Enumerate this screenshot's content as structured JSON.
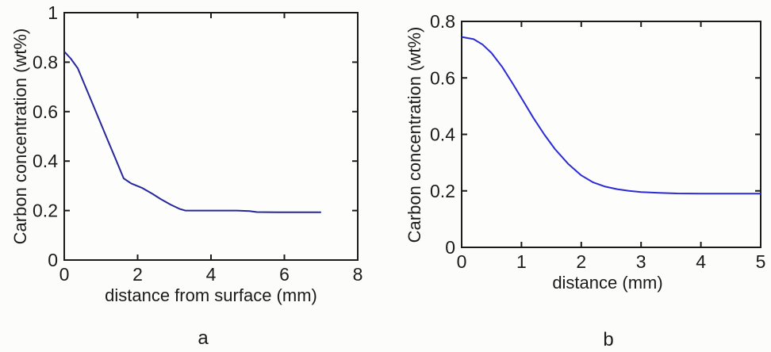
{
  "figure": {
    "description": "Two line plots of carbon concentration versus distance",
    "background": "#fcfcfa"
  },
  "chart_data": [
    {
      "type": "line",
      "panel_label": "a",
      "title": "",
      "xlabel": "distance from surface (mm)",
      "ylabel": "Carbon concentration (wt%)",
      "xlim": [
        0,
        8
      ],
      "ylim": [
        0,
        1
      ],
      "x_tick_labels": [
        "0",
        "2",
        "4",
        "6",
        "8"
      ],
      "y_tick_labels": [
        "0",
        "0.2",
        "0.4",
        "0.6",
        "0.8",
        "1"
      ],
      "grid": false,
      "legend": null,
      "line_color": "#26269d",
      "axis_color": "#1b1b1b",
      "x": [
        0,
        0.18,
        0.37,
        0.56,
        0.76,
        0.95,
        1.17,
        1.38,
        1.62,
        1.82,
        2.13,
        2.4,
        2.62,
        2.9,
        3.14,
        3.3,
        3.7,
        4.2,
        4.7,
        5.05,
        5.25,
        5.8,
        6.4,
        7.0
      ],
      "y": [
        0.843,
        0.814,
        0.775,
        0.707,
        0.636,
        0.569,
        0.49,
        0.416,
        0.33,
        0.31,
        0.291,
        0.268,
        0.247,
        0.224,
        0.207,
        0.2,
        0.2,
        0.2,
        0.2,
        0.198,
        0.194,
        0.193,
        0.193,
        0.193
      ]
    },
    {
      "type": "line",
      "panel_label": "b",
      "title": "",
      "xlabel": "distance (mm)",
      "ylabel": "Carbon concentration (wt%)",
      "xlim": [
        0,
        5
      ],
      "ylim": [
        0,
        0.8
      ],
      "x_tick_labels": [
        "0",
        "1",
        "2",
        "3",
        "4",
        "5"
      ],
      "y_tick_labels": [
        "0",
        "0.2",
        "0.4",
        "0.6",
        "0.8"
      ],
      "grid": false,
      "legend": null,
      "line_color": "#2b2bd6",
      "axis_color": "#1b1b1b",
      "x": [
        0,
        0.2,
        0.35,
        0.5,
        0.68,
        0.86,
        1.03,
        1.2,
        1.38,
        1.56,
        1.78,
        2.0,
        2.2,
        2.4,
        2.6,
        2.8,
        3.0,
        3.3,
        3.6,
        4.0,
        4.5,
        5.0
      ],
      "y": [
        0.745,
        0.737,
        0.718,
        0.688,
        0.638,
        0.578,
        0.518,
        0.458,
        0.4,
        0.348,
        0.296,
        0.255,
        0.23,
        0.215,
        0.206,
        0.2,
        0.196,
        0.193,
        0.191,
        0.19,
        0.19,
        0.19
      ]
    }
  ]
}
